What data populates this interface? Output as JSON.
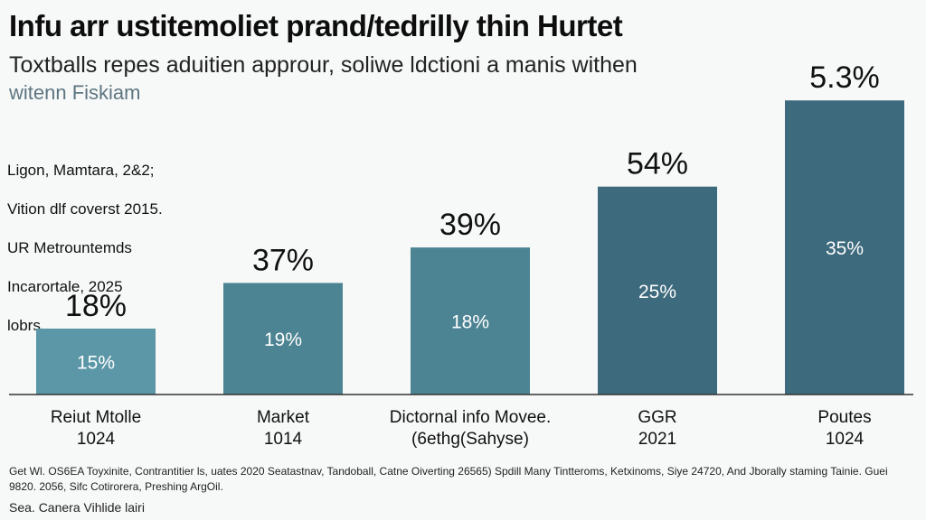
{
  "header": {
    "title": "Infu arr ustitemoliet prand/tedrilly thin Hurtet",
    "subtitle": "Toxtballs repes aduitien approur, soliwe ldctioni a manis withen",
    "subtitle2": "witenn Fiskiam"
  },
  "note": {
    "lines": [
      "Ligon, Mamtara, 2&2;",
      "Vition dlf coverst 2015.",
      "UR Metrountemds",
      "Incarortale, 2025",
      "lobrs."
    ]
  },
  "colors": {
    "bar_light": "#5b97a6",
    "bar_mid": "#4d8493",
    "bar_dark": "#3d6a7c",
    "axis": "#333333",
    "inner_label": "#ffffff",
    "background": "#f7f8f8"
  },
  "chart_data": {
    "type": "bar",
    "title": "Infu arr ustitemoliet prand/tedrilly thin Hurtet",
    "xlabel": "",
    "ylabel": "",
    "ylim": [
      0,
      60
    ],
    "grid": false,
    "categories": [
      {
        "name": "Reiut Mtolle",
        "sub": "1024"
      },
      {
        "name": "Market",
        "sub": "1014"
      },
      {
        "name": "Dictornal info Movee.",
        "sub": "(6ethg(Sahyse)"
      },
      {
        "name": "GGR",
        "sub": "2021"
      },
      {
        "name": "Poutes",
        "sub": "1024"
      }
    ],
    "values": [
      13,
      22,
      29,
      41,
      58
    ],
    "top_labels": [
      "18%",
      "37%",
      "39%",
      "54%",
      "5.3%"
    ],
    "inner_labels": [
      "15%",
      "19%",
      "18%",
      "25%",
      "35%"
    ]
  },
  "footer": {
    "text": "Get Wl. OS6EA Toyxinite, Contrantitier ls, uates 2020 Seatastnav, Tandoball, Catne Oiverting 26565) Spdill Many Tintteroms, Ketxinoms, Siye 24720, And Jborally staming Tainie. Guei 9820. 2056, Sifc Cotirorera, Preshing ArgOil.",
    "source": "Sea. Canera Vihlide lairi"
  }
}
